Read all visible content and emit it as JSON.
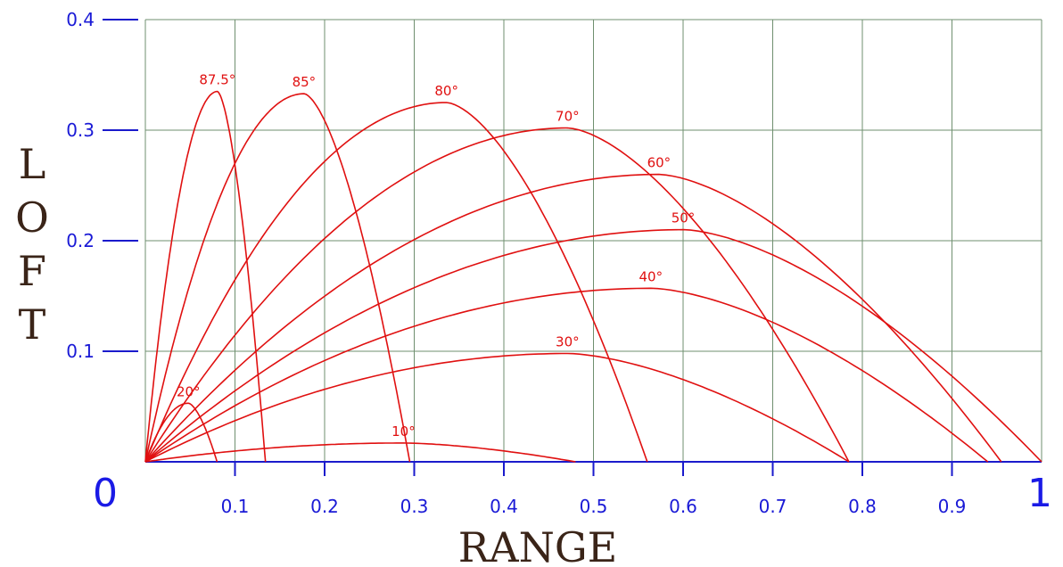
{
  "chart_data": {
    "type": "line",
    "xlabel": "RANGE",
    "ylabel": "LOFT",
    "xlim": [
      0,
      1
    ],
    "ylim": [
      0,
      0.4
    ],
    "grid": true,
    "x_ticks": [
      "0",
      "0.1",
      "0.2",
      "0.3",
      "0.4",
      "0.5",
      "0.6",
      "0.7",
      "0.8",
      "0.9",
      "1"
    ],
    "y_ticks": [
      "0.1",
      "0.2",
      "0.3",
      "0.4"
    ],
    "colors": {
      "curves": "#e01010",
      "axis": "#1a1acc",
      "grid": "#6f8f6f",
      "title": "#3a2418"
    },
    "series": [
      {
        "name": "87.5°",
        "range": 0.134,
        "max_loft": 0.335
      },
      {
        "name": "85°",
        "range": 0.295,
        "max_loft": 0.333
      },
      {
        "name": "80°",
        "range": 0.56,
        "max_loft": 0.325
      },
      {
        "name": "70°",
        "range": 0.785,
        "max_loft": 0.302
      },
      {
        "name": "60°",
        "range": 0.955,
        "max_loft": 0.26
      },
      {
        "name": "50°",
        "range": 1.0,
        "max_loft": 0.21
      },
      {
        "name": "40°",
        "range": 0.94,
        "max_loft": 0.157
      },
      {
        "name": "30°",
        "range": 0.785,
        "max_loft": 0.098
      },
      {
        "name": "20°",
        "range": 0.08,
        "max_loft": 0.053
      },
      {
        "name": "10°",
        "range": 0.48,
        "max_loft": 0.017
      }
    ]
  }
}
